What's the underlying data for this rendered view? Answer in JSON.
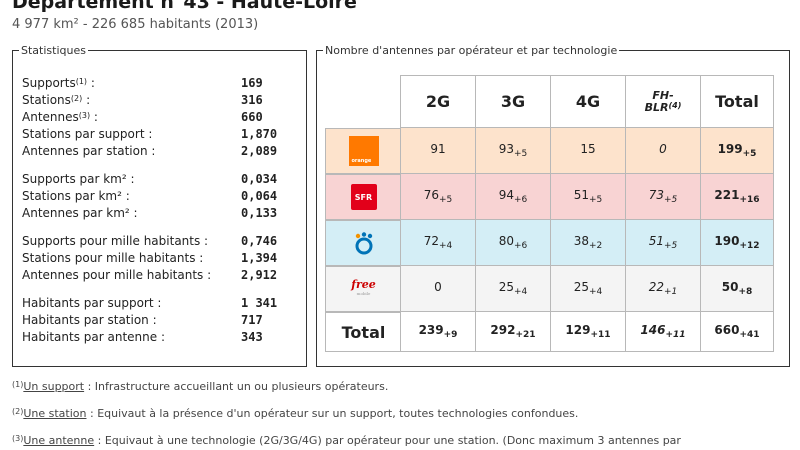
{
  "header": {
    "title": "Département n°43 - Haute-Loire",
    "subtitle": "4 977 km² - 226 685 habitants (2013)"
  },
  "stats": {
    "legend": "Statistiques",
    "groups": [
      [
        {
          "label": "Supports",
          "sup": "(1)",
          "suffix": " :",
          "value": "169"
        },
        {
          "label": "Stations",
          "sup": "(2)",
          "suffix": " :",
          "value": "316"
        },
        {
          "label": "Antennes",
          "sup": "(3)",
          "suffix": " :",
          "value": "660"
        },
        {
          "label": "Stations par support :",
          "sup": "",
          "suffix": "",
          "value": "1,870"
        },
        {
          "label": "Antennes par station :",
          "sup": "",
          "suffix": "",
          "value": "2,089"
        }
      ],
      [
        {
          "label": "Supports par km² :",
          "sup": "",
          "suffix": "",
          "value": "0,034"
        },
        {
          "label": "Stations par km² :",
          "sup": "",
          "suffix": "",
          "value": "0,064"
        },
        {
          "label": "Antennes par km² :",
          "sup": "",
          "suffix": "",
          "value": "0,133"
        }
      ],
      [
        {
          "label": "Supports pour mille habitants :",
          "sup": "",
          "suffix": "",
          "value": "0,746"
        },
        {
          "label": "Stations pour mille habitants :",
          "sup": "",
          "suffix": "",
          "value": "1,394"
        },
        {
          "label": "Antennes pour mille habitants :",
          "sup": "",
          "suffix": "",
          "value": "2,912"
        }
      ],
      [
        {
          "label": "Habitants par support :",
          "sup": "",
          "suffix": "",
          "value": "1 341"
        },
        {
          "label": "Habitants par station :",
          "sup": "",
          "suffix": "",
          "value": "717"
        },
        {
          "label": "Habitants par antenne :",
          "sup": "",
          "suffix": "",
          "value": "343"
        }
      ]
    ]
  },
  "table": {
    "legend": "Nombre d'antennes par opérateur et par technologie",
    "headers": [
      "2G",
      "3G",
      "4G"
    ],
    "fh_header": {
      "line1": "FH-",
      "line2": "BLR",
      "sup": "(4)"
    },
    "total_header": "Total",
    "total_label": "Total",
    "rows": [
      {
        "operator": "orange",
        "logo_icon": "orange-logo-icon",
        "logo_text": "orange",
        "cells": [
          {
            "v": "91",
            "s": ""
          },
          {
            "v": "93",
            "s": "+5"
          },
          {
            "v": "15",
            "s": ""
          },
          {
            "v": "0",
            "s": ""
          }
        ],
        "total": {
          "v": "199",
          "s": "+5"
        }
      },
      {
        "operator": "sfr",
        "logo_icon": "sfr-logo-icon",
        "logo_text": "SFR",
        "cells": [
          {
            "v": "76",
            "s": "+5"
          },
          {
            "v": "94",
            "s": "+6"
          },
          {
            "v": "51",
            "s": "+5"
          },
          {
            "v": "73",
            "s": "+5"
          }
        ],
        "total": {
          "v": "221",
          "s": "+16"
        }
      },
      {
        "operator": "bouygues",
        "logo_icon": "bouygues-logo-icon",
        "logo_text": "",
        "cells": [
          {
            "v": "72",
            "s": "+4"
          },
          {
            "v": "80",
            "s": "+6"
          },
          {
            "v": "38",
            "s": "+2"
          },
          {
            "v": "51",
            "s": "+5"
          }
        ],
        "total": {
          "v": "190",
          "s": "+12"
        }
      },
      {
        "operator": "free",
        "logo_icon": "free-logo-icon",
        "logo_text": "free",
        "logo_subtext": "mobile",
        "cells": [
          {
            "v": "0",
            "s": ""
          },
          {
            "v": "25",
            "s": "+4"
          },
          {
            "v": "25",
            "s": "+4"
          },
          {
            "v": "22",
            "s": "+1"
          }
        ],
        "total": {
          "v": "50",
          "s": "+8"
        }
      }
    ],
    "totals": {
      "cells": [
        {
          "v": "239",
          "s": "+9"
        },
        {
          "v": "292",
          "s": "+21"
        },
        {
          "v": "129",
          "s": "+11"
        },
        {
          "v": "146",
          "s": "+11"
        }
      ],
      "total": {
        "v": "660",
        "s": "+41"
      }
    },
    "colors": {
      "orange": "#fde3cc",
      "sfr": "#f8d3d3",
      "bouygues": "#d4eef6",
      "free": "#f4f4f4"
    }
  },
  "notes": [
    {
      "sup": "(1)",
      "term": "Un support",
      "text": " : Infrastructure accueillant un ou plusieurs opérateurs."
    },
    {
      "sup": "(2)",
      "term": "Une station",
      "text": " : Equivaut à la présence d'un opérateur sur un support, toutes technologies confondues."
    },
    {
      "sup": "(3)",
      "term": "Une antenne",
      "text": " : Equivaut à une technologie (2G/3G/4G) par opérateur pour une station. (Donc maximum 3 antennes par"
    }
  ]
}
